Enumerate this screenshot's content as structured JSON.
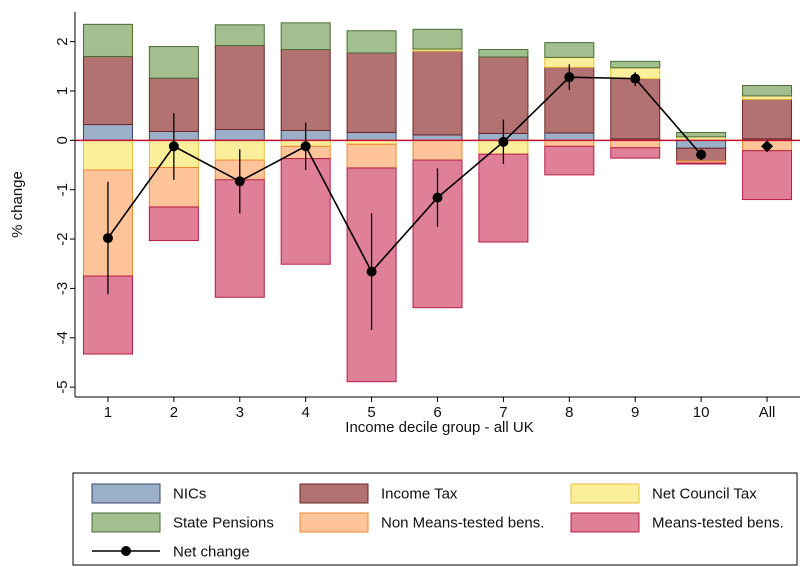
{
  "chart_data": {
    "type": "stacked-bar-with-line",
    "categories": [
      "1",
      "2",
      "3",
      "4",
      "5",
      "6",
      "7",
      "8",
      "9",
      "10",
      "All"
    ],
    "xlabel": "Income decile group - all UK",
    "ylabel": "% change",
    "ylim": [
      -5.2,
      2.6
    ],
    "yticks": [
      2,
      1,
      0,
      -1,
      -2,
      -3,
      -4,
      -5
    ],
    "ytick_labels": [
      "2",
      "1",
      "0",
      "-1",
      "-2",
      "-3",
      "-4",
      "-5"
    ],
    "grid": false,
    "legend_position": "bottom",
    "series": [
      {
        "name": "NICs",
        "color": "#9bb0c8",
        "edge": "#35476b",
        "values": [
          0.32,
          0.18,
          0.22,
          0.2,
          0.16,
          0.11,
          0.14,
          0.15,
          0.03,
          -0.16,
          0.03
        ]
      },
      {
        "name": "Income Tax",
        "color": "#b37272",
        "edge": "#6b2727",
        "values": [
          1.38,
          1.08,
          1.7,
          1.64,
          1.61,
          1.7,
          1.55,
          1.33,
          1.22,
          -0.26,
          0.8
        ]
      },
      {
        "name": "Net Council Tax",
        "color": "#fcef9c",
        "edge": "#e8c23c",
        "values": [
          -0.6,
          -0.55,
          -0.4,
          -0.12,
          -0.08,
          0.04,
          -0.28,
          0.2,
          0.22,
          0.07,
          0.07
        ]
      },
      {
        "name": "State Pensions",
        "color": "#a3be8f",
        "edge": "#4a6e34",
        "values": [
          0.65,
          0.64,
          0.42,
          0.54,
          0.45,
          0.4,
          0.15,
          0.3,
          0.13,
          0.09,
          0.21
        ]
      },
      {
        "name": "Non Means-tested bens.",
        "color": "#ffc49a",
        "edge": "#ec8a30",
        "values": [
          -2.15,
          -0.8,
          -0.4,
          -0.25,
          -0.48,
          -0.4,
          0.0,
          -0.12,
          -0.15,
          -0.04,
          -0.21
        ]
      },
      {
        "name": "Means-tested bens.",
        "color": "#e07f98",
        "edge": "#b81e45",
        "values": [
          -1.58,
          -0.68,
          -2.38,
          -2.14,
          -4.33,
          -2.99,
          -1.78,
          -0.58,
          -0.21,
          -0.02,
          -0.99
        ]
      }
    ],
    "net_change": {
      "name": "Net change",
      "values": [
        -1.98,
        -0.12,
        -0.83,
        -0.12,
        -2.66,
        -1.16,
        -0.03,
        1.28,
        1.25,
        -0.29,
        -0.12
      ],
      "ci_low": [
        -3.12,
        -0.8,
        -1.48,
        -0.6,
        -3.84,
        -1.75,
        -0.48,
        1.02,
        1.1,
        -0.4,
        -0.18
      ],
      "ci_high": [
        -0.84,
        0.55,
        -0.18,
        0.36,
        -1.48,
        -0.57,
        0.42,
        1.54,
        1.38,
        -0.18,
        -0.06
      ],
      "markers": [
        "circle",
        "circle",
        "circle",
        "circle",
        "circle",
        "circle",
        "circle",
        "circle",
        "circle",
        "circle",
        "diamond"
      ]
    },
    "zero_line_color": "#c8102e"
  }
}
